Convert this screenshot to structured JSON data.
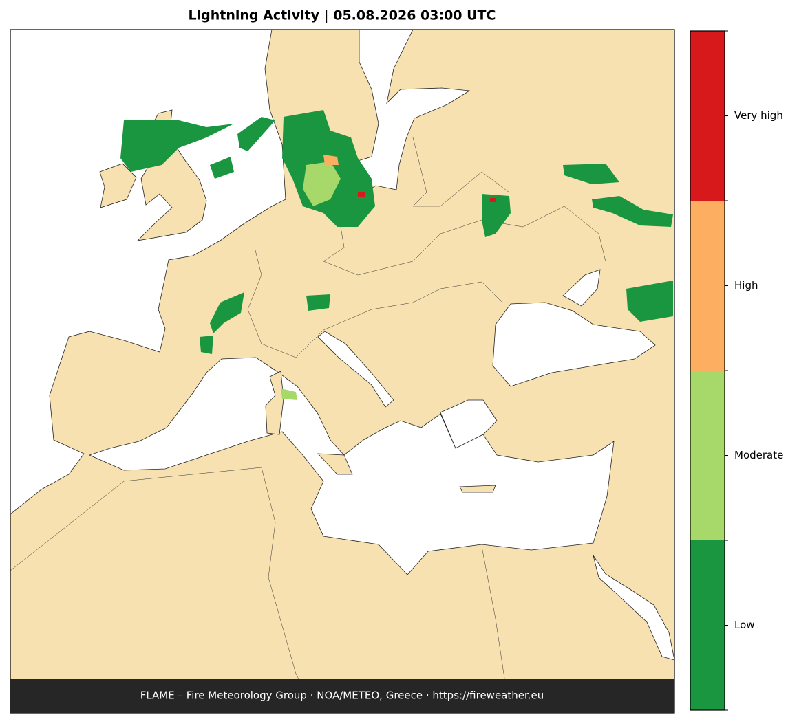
{
  "title": "Lightning Activity  |  05.08.2026 03:00 UTC",
  "footer": "FLAME – Fire Meteorology Group · NOA/METEO, Greece · https://fireweather.eu",
  "legend": {
    "levels": [
      {
        "label": "Low",
        "color": "#1a9641"
      },
      {
        "label": "Moderate",
        "color": "#a6d96a"
      },
      {
        "label": "High",
        "color": "#fdae61"
      },
      {
        "label": "Very high",
        "color": "#d7191c"
      }
    ]
  }
}
